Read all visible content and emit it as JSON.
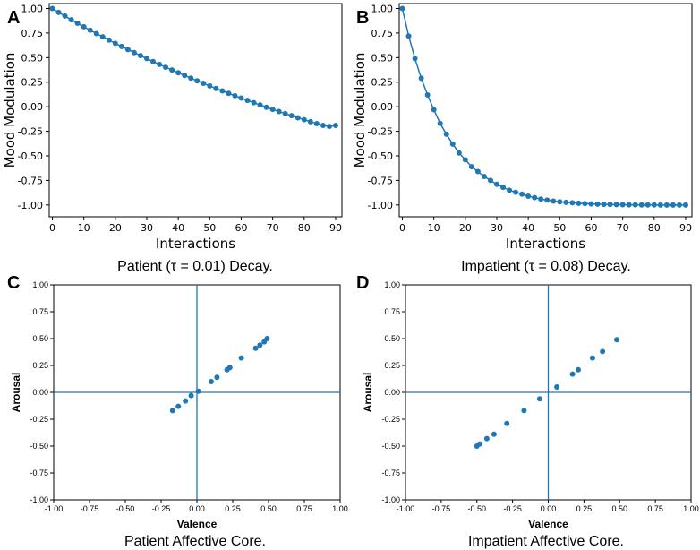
{
  "chart_data": [
    {
      "panel": "A",
      "type": "line",
      "caption": "Patient (τ = 0.01) Decay.",
      "xlabel": "Interactions",
      "ylabel": "Mood Modulation",
      "xlim": [
        -1,
        92
      ],
      "ylim": [
        -1.12,
        1.05
      ],
      "xticks": [
        0,
        10,
        20,
        30,
        40,
        50,
        60,
        70,
        80,
        90
      ],
      "yticks": [
        1.0,
        0.75,
        0.5,
        0.25,
        0.0,
        -0.25,
        -0.5,
        -0.75,
        -1.0
      ],
      "ytick_labels": [
        "1.00",
        "0.75",
        "0.50",
        "0.25",
        "0.00",
        "-0.25",
        "-0.50",
        "-0.75",
        "-1.00"
      ],
      "series": [
        {
          "name": "mood",
          "x": [
            0,
            2,
            4,
            6,
            8,
            10,
            12,
            14,
            16,
            18,
            20,
            22,
            24,
            26,
            28,
            30,
            32,
            34,
            36,
            38,
            40,
            42,
            44,
            46,
            48,
            50,
            52,
            54,
            56,
            58,
            60,
            62,
            64,
            66,
            68,
            70,
            72,
            74,
            76,
            78,
            80,
            82,
            84,
            86,
            88,
            90
          ],
          "y": [
            1.0,
            0.96,
            0.923,
            0.885,
            0.849,
            0.814,
            0.779,
            0.745,
            0.711,
            0.678,
            0.645,
            0.613,
            0.582,
            0.551,
            0.52,
            0.49,
            0.46,
            0.431,
            0.402,
            0.374,
            0.346,
            0.318,
            0.291,
            0.264,
            0.238,
            0.212,
            0.186,
            0.161,
            0.136,
            0.112,
            0.088,
            0.064,
            0.041,
            0.018,
            -0.005,
            -0.027,
            -0.049,
            -0.07,
            -0.091,
            -0.112,
            -0.132,
            -0.152,
            -0.172,
            -0.19,
            -0.2,
            -0.19
          ]
        }
      ],
      "color": "#1f77b4"
    },
    {
      "panel": "B",
      "type": "line",
      "caption": "Impatient (τ = 0.08) Decay.",
      "xlabel": "Interactions",
      "ylabel": "Mood Modulation",
      "xlim": [
        -1,
        92
      ],
      "ylim": [
        -1.12,
        1.05
      ],
      "xticks": [
        0,
        10,
        20,
        30,
        40,
        50,
        60,
        70,
        80,
        90
      ],
      "yticks": [
        1.0,
        0.75,
        0.5,
        0.25,
        0.0,
        -0.25,
        -0.5,
        -0.75,
        -1.0
      ],
      "ytick_labels": [
        "1.00",
        "0.75",
        "0.50",
        "0.25",
        "0.00",
        "-0.25",
        "-0.50",
        "-0.75",
        "-1.00"
      ],
      "series": [
        {
          "name": "mood",
          "x": [
            0,
            2,
            4,
            6,
            8,
            10,
            12,
            14,
            16,
            18,
            20,
            22,
            24,
            26,
            28,
            30,
            32,
            34,
            36,
            38,
            40,
            42,
            44,
            46,
            48,
            50,
            52,
            54,
            56,
            58,
            60,
            62,
            64,
            66,
            68,
            70,
            72,
            74,
            76,
            78,
            80,
            82,
            84,
            86,
            88,
            90
          ],
          "y": [
            1.0,
            0.72,
            0.49,
            0.29,
            0.12,
            -0.03,
            -0.17,
            -0.28,
            -0.38,
            -0.47,
            -0.54,
            -0.61,
            -0.66,
            -0.71,
            -0.75,
            -0.79,
            -0.82,
            -0.85,
            -0.87,
            -0.89,
            -0.91,
            -0.925,
            -0.94,
            -0.95,
            -0.96,
            -0.967,
            -0.973,
            -0.978,
            -0.982,
            -0.986,
            -0.989,
            -0.991,
            -0.993,
            -0.995,
            -0.996,
            -0.997,
            -0.998,
            -0.998,
            -0.999,
            -0.999,
            -0.999,
            -1.0,
            -1.0,
            -1.0,
            -1.0,
            -1.0
          ]
        }
      ],
      "color": "#1f77b4"
    },
    {
      "panel": "C",
      "type": "scatter",
      "caption": "Patient Affective Core.",
      "xlabel": "Valence",
      "ylabel": "Arousal",
      "xlim": [
        -1.0,
        1.0
      ],
      "ylim": [
        -1.0,
        1.0
      ],
      "xticks": [
        -1.0,
        -0.75,
        -0.5,
        -0.25,
        0.0,
        0.25,
        0.5,
        0.75,
        1.0
      ],
      "xtick_labels": [
        "-1.00",
        "-0.75",
        "-0.50",
        "-0.25",
        "0.00",
        "0.25",
        "0.50",
        "0.75",
        "1.00"
      ],
      "yticks": [
        1.0,
        0.75,
        0.5,
        0.25,
        0.0,
        -0.25,
        -0.5,
        -0.75,
        -1.0
      ],
      "ytick_labels": [
        "1.00",
        "0.75",
        "0.50",
        "0.25",
        "0.00",
        "-0.25",
        "-0.50",
        "-0.75",
        "-1.00"
      ],
      "points": {
        "x": [
          -0.17,
          -0.13,
          -0.08,
          -0.04,
          0.01,
          0.1,
          0.14,
          0.21,
          0.23,
          0.31,
          0.41,
          0.44,
          0.47,
          0.49
        ],
        "y": [
          -0.17,
          -0.13,
          -0.08,
          -0.03,
          0.01,
          0.1,
          0.14,
          0.21,
          0.23,
          0.32,
          0.41,
          0.44,
          0.47,
          0.5
        ]
      },
      "color": "#1f77b4"
    },
    {
      "panel": "D",
      "type": "scatter",
      "caption": "Impatient Affective Core.",
      "xlabel": "Valence",
      "ylabel": "Arousal",
      "xlim": [
        -1.0,
        1.0
      ],
      "ylim": [
        -1.0,
        1.0
      ],
      "xticks": [
        -1.0,
        -0.75,
        -0.5,
        -0.25,
        0.0,
        0.25,
        0.5,
        0.75,
        1.0
      ],
      "xtick_labels": [
        "-1.00",
        "-0.75",
        "-0.50",
        "-0.25",
        "0.00",
        "0.25",
        "0.50",
        "0.75",
        "1.00"
      ],
      "yticks": [
        1.0,
        0.75,
        0.5,
        0.25,
        0.0,
        -0.25,
        -0.5,
        -0.75,
        -1.0
      ],
      "ytick_labels": [
        "1.00",
        "0.75",
        "0.50",
        "0.25",
        "0.00",
        "-0.25",
        "-0.50",
        "-0.75",
        "-1.00"
      ],
      "points": {
        "x": [
          -0.5,
          -0.48,
          -0.43,
          -0.38,
          -0.29,
          -0.17,
          -0.06,
          0.06,
          0.17,
          0.21,
          0.31,
          0.38,
          0.48
        ],
        "y": [
          -0.5,
          -0.48,
          -0.43,
          -0.39,
          -0.29,
          -0.17,
          -0.06,
          0.05,
          0.17,
          0.21,
          0.32,
          0.38,
          0.49
        ]
      },
      "color": "#1f77b4"
    }
  ]
}
